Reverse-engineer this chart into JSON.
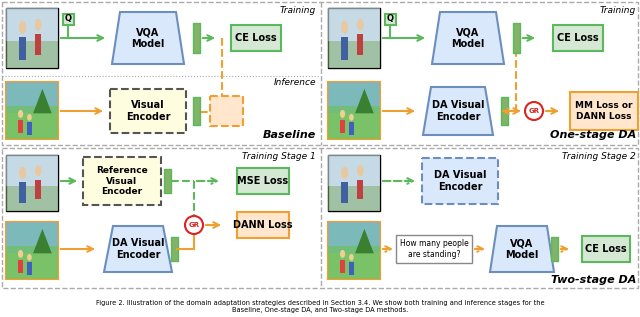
{
  "bg_color": "#ffffff",
  "caption": "Figure 2. Illustration of the domain adaptation strategies described in Section 3.4. We show both training and inference stages for the",
  "caption2": "Baseline, One-stage DA, and Two-stage DA methods.",
  "green_fc": "#d5e8d4",
  "green_ec": "#5cb85c",
  "orange_fc": "#ffe6cc",
  "orange_ec": "#f0a030",
  "blue_fc": "#dae8fc",
  "blue_ec": "#6c8ebf",
  "dashed_ec": "#555555",
  "dashed_fc": "#fffde0",
  "gr_ec": "#dd2222",
  "q_label": "Q",
  "gr_label": "GR"
}
